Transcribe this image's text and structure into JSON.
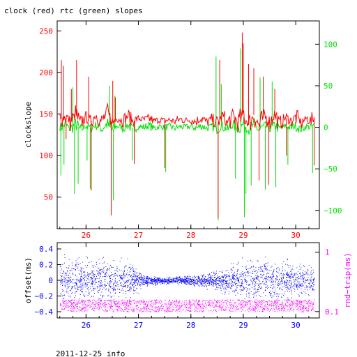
{
  "title": "clock (red) rtc (green) slopes",
  "footer": "2011-12-25 info",
  "colors": {
    "clock": "#ff0000",
    "rtc": "#00e000",
    "offset": "#0000ff",
    "rndtrip": "#ff00ff",
    "frame": "#000000"
  },
  "chart_data": [
    {
      "type": "line",
      "xlim": [
        25.45,
        30.45
      ],
      "x_ticks": [
        26,
        27,
        28,
        29,
        30
      ],
      "x_tick_labels": [
        "26",
        "27",
        "28",
        "29",
        "30"
      ],
      "ylabel": "clockslope",
      "ylim": [
        12,
        262
      ],
      "y_ticks": [
        50,
        100,
        150,
        200,
        250
      ],
      "y_tick_labels": [
        "50",
        "100",
        "150",
        "200",
        "250"
      ],
      "y2lim": [
        -122,
        128
      ],
      "y2_ticks": [
        -100,
        -50,
        0,
        50,
        100
      ],
      "y2_tick_labels": [
        "−100",
        "−50",
        "0",
        "50",
        "100"
      ],
      "series": [
        {
          "axis": "y2",
          "color": "#00e000",
          "points": [
            [
              25.5,
              2
            ],
            [
              25.55,
              0
            ],
            [
              25.6,
              3
            ],
            [
              25.7,
              -2
            ],
            [
              25.8,
              4
            ],
            [
              25.9,
              -3
            ],
            [
              26.0,
              2
            ],
            [
              26.1,
              -1
            ],
            [
              26.2,
              3
            ],
            [
              26.3,
              -2
            ],
            [
              26.4,
              4
            ],
            [
              26.5,
              -3
            ],
            [
              26.6,
              2
            ],
            [
              26.7,
              -1
            ],
            [
              26.8,
              3
            ],
            [
              26.9,
              -2
            ],
            [
              27.0,
              1
            ],
            [
              27.1,
              0
            ],
            [
              27.2,
              2
            ],
            [
              27.3,
              -1
            ],
            [
              27.4,
              1
            ],
            [
              27.5,
              0
            ],
            [
              27.6,
              1
            ],
            [
              27.7,
              -1
            ],
            [
              27.8,
              1
            ],
            [
              27.9,
              0
            ],
            [
              28.0,
              1
            ],
            [
              28.1,
              -1
            ],
            [
              28.2,
              2
            ],
            [
              28.3,
              -1
            ],
            [
              28.4,
              1
            ],
            [
              28.5,
              -2
            ],
            [
              28.6,
              2
            ],
            [
              28.7,
              -3
            ],
            [
              28.8,
              3
            ],
            [
              28.9,
              -2
            ],
            [
              29.0,
              4
            ],
            [
              29.1,
              -3
            ],
            [
              29.2,
              3
            ],
            [
              29.3,
              -4
            ],
            [
              29.4,
              2
            ],
            [
              29.5,
              -1
            ],
            [
              29.6,
              3
            ],
            [
              29.7,
              -2
            ],
            [
              29.8,
              2
            ],
            [
              29.9,
              -1
            ],
            [
              30.0,
              2
            ],
            [
              30.1,
              -2
            ],
            [
              30.2,
              1
            ],
            [
              30.3,
              0
            ],
            [
              30.35,
              2
            ]
          ],
          "spikes": [
            [
              25.52,
              -58
            ],
            [
              25.58,
              -45
            ],
            [
              25.75,
              48
            ],
            [
              25.78,
              -80
            ],
            [
              25.85,
              -68
            ],
            [
              26.02,
              -40
            ],
            [
              26.08,
              -74
            ],
            [
              26.45,
              50
            ],
            [
              26.52,
              -88
            ],
            [
              26.55,
              38
            ],
            [
              26.88,
              -40
            ],
            [
              27.52,
              -54
            ],
            [
              28.48,
              85
            ],
            [
              28.52,
              -112
            ],
            [
              28.58,
              52
            ],
            [
              28.85,
              -62
            ],
            [
              28.95,
              95
            ],
            [
              29.02,
              -108
            ],
            [
              29.05,
              -80
            ],
            [
              29.15,
              -70
            ],
            [
              29.32,
              60
            ],
            [
              29.42,
              -75
            ],
            [
              29.55,
              55
            ],
            [
              29.62,
              -72
            ],
            [
              29.85,
              -45
            ],
            [
              30.32,
              -55
            ]
          ]
        },
        {
          "axis": "y",
          "color": "#ff0000",
          "points": [
            [
              25.5,
              146
            ],
            [
              25.55,
              143
            ],
            [
              25.6,
              148
            ],
            [
              25.7,
              140
            ],
            [
              25.8,
              150
            ],
            [
              25.9,
              139
            ],
            [
              26.0,
              147
            ],
            [
              26.1,
              142
            ],
            [
              26.2,
              149
            ],
            [
              26.3,
              140
            ],
            [
              26.4,
              151
            ],
            [
              26.5,
              138
            ],
            [
              26.6,
              147
            ],
            [
              26.7,
              142
            ],
            [
              26.8,
              148
            ],
            [
              26.9,
              141
            ],
            [
              27.0,
              145
            ],
            [
              27.1,
              143
            ],
            [
              27.2,
              145
            ],
            [
              27.3,
              141
            ],
            [
              27.4,
              143
            ],
            [
              27.5,
              142
            ],
            [
              27.6,
              143
            ],
            [
              27.7,
              141
            ],
            [
              27.8,
              144
            ],
            [
              27.9,
              142
            ],
            [
              28.0,
              143
            ],
            [
              28.1,
              141
            ],
            [
              28.2,
              145
            ],
            [
              28.3,
              140
            ],
            [
              28.4,
              144
            ],
            [
              28.5,
              139
            ],
            [
              28.6,
              147
            ],
            [
              28.7,
              138
            ],
            [
              28.8,
              149
            ],
            [
              28.9,
              139
            ],
            [
              29.0,
              151
            ],
            [
              29.1,
              137
            ],
            [
              29.2,
              149
            ],
            [
              29.3,
              136
            ],
            [
              29.4,
              148
            ],
            [
              29.5,
              140
            ],
            [
              29.6,
              149
            ],
            [
              29.7,
              139
            ],
            [
              29.8,
              146
            ],
            [
              29.9,
              141
            ],
            [
              30.0,
              147
            ],
            [
              30.1,
              139
            ],
            [
              30.2,
              145
            ],
            [
              30.3,
              141
            ],
            [
              30.35,
              146
            ]
          ],
          "spikes": [
            [
              25.53,
              215
            ],
            [
              25.57,
              208
            ],
            [
              25.62,
              120
            ],
            [
              25.72,
              180
            ],
            [
              25.82,
              215
            ],
            [
              26.05,
              195
            ],
            [
              26.1,
              58
            ],
            [
              26.48,
              28
            ],
            [
              26.51,
              190
            ],
            [
              26.56,
              170
            ],
            [
              26.92,
              90
            ],
            [
              27.5,
              85
            ],
            [
              28.52,
              25
            ],
            [
              28.55,
              215
            ],
            [
              28.98,
              248
            ],
            [
              29.0,
              235
            ],
            [
              29.1,
              210
            ],
            [
              29.2,
              205
            ],
            [
              29.3,
              70
            ],
            [
              29.38,
              195
            ],
            [
              29.48,
              65
            ],
            [
              29.6,
              180
            ],
            [
              29.82,
              100
            ],
            [
              30.35,
              88
            ]
          ]
        }
      ]
    },
    {
      "type": "scatter",
      "xlim": [
        25.45,
        30.45
      ],
      "x_ticks": [
        26,
        27,
        28,
        29,
        30
      ],
      "x_tick_labels": [
        "26",
        "27",
        "28",
        "29",
        "30"
      ],
      "ylabel": "offset(ms)",
      "ylim": [
        -0.48,
        0.48
      ],
      "y_ticks": [
        -0.4,
        -0.2,
        0,
        0.2,
        0.4
      ],
      "y_tick_labels": [
        "−0.4",
        "−0.2",
        "0",
        "0.2",
        "0.4"
      ],
      "y2label": "rnd−trip(ms)",
      "y2scale": "log",
      "y2lim": [
        0.078,
        1.45
      ],
      "y2_ticks": [
        0.1,
        1
      ],
      "y2_tick_labels": [
        "0.1",
        "1"
      ],
      "series": [
        {
          "axis": "y",
          "color": "#0000ff",
          "spread": [
            [
              25.5,
              0.25
            ],
            [
              26.0,
              0.22
            ],
            [
              26.5,
              0.22
            ],
            [
              26.9,
              0.18
            ],
            [
              27.1,
              0.06
            ],
            [
              27.5,
              0.03
            ],
            [
              28.0,
              0.05
            ],
            [
              28.5,
              0.1
            ],
            [
              29.0,
              0.22
            ],
            [
              29.5,
              0.22
            ],
            [
              30.0,
              0.18
            ],
            [
              30.35,
              0.16
            ]
          ]
        },
        {
          "axis": "y2",
          "color": "#ff00ff",
          "band": [
            0.1,
            0.16
          ]
        }
      ]
    }
  ]
}
